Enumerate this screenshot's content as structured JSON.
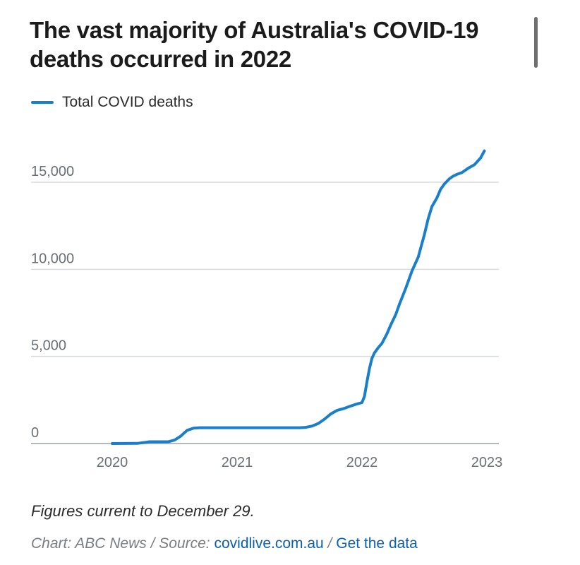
{
  "title": "The vast majority of Australia's COVID-19 deaths occurred in 2022",
  "legend": [
    {
      "label": "Total COVID deaths",
      "color": "#1a7fca"
    }
  ],
  "note": "Figures current to December 29.",
  "credit": {
    "prefix": "Chart: ABC News / Source: ",
    "source_link": "covidlive.com.au",
    "separator": " / ",
    "data_link": "Get the data"
  },
  "chart_data": {
    "type": "line",
    "title": "The vast majority of Australia's COVID-19 deaths occurred in 2022",
    "xlabel": "",
    "ylabel": "",
    "xlim": [
      2019.6,
      2023.1
    ],
    "ylim": [
      0,
      17500
    ],
    "x_ticks": [
      2020,
      2021,
      2022,
      2023
    ],
    "x_tick_labels": [
      "2020",
      "2021",
      "2022",
      "2023"
    ],
    "y_ticks": [
      0,
      5000,
      10000,
      15000
    ],
    "y_tick_labels": [
      "0",
      "5,000",
      "10,000",
      "15,000"
    ],
    "grid": "horizontal",
    "legend_position": "top-left",
    "series": [
      {
        "name": "Total COVID deaths",
        "color": "#1a7fca",
        "x": [
          2020.0,
          2020.2,
          2020.3,
          2020.45,
          2020.5,
          2020.55,
          2020.6,
          2020.65,
          2020.7,
          2020.75,
          2020.85,
          2021.0,
          2021.5,
          2021.55,
          2021.6,
          2021.65,
          2021.7,
          2021.75,
          2021.8,
          2021.85,
          2021.9,
          2021.95,
          2022.0,
          2022.02,
          2022.04,
          2022.06,
          2022.08,
          2022.1,
          2022.13,
          2022.16,
          2022.2,
          2022.23,
          2022.27,
          2022.3,
          2022.35,
          2022.4,
          2022.45,
          2022.5,
          2022.53,
          2022.56,
          2022.6,
          2022.63,
          2022.66,
          2022.7,
          2022.73,
          2022.76,
          2022.8,
          2022.85,
          2022.9,
          2022.95,
          2022.98
        ],
        "values": [
          0,
          10,
          100,
          104,
          200,
          430,
          760,
          880,
          909,
          910,
          910,
          910,
          910,
          930,
          1000,
          1150,
          1400,
          1700,
          1900,
          2000,
          2130,
          2250,
          2350,
          2700,
          3550,
          4300,
          4900,
          5200,
          5500,
          5750,
          6300,
          6800,
          7400,
          8000,
          8900,
          9900,
          10700,
          12000,
          12900,
          13600,
          14100,
          14600,
          14900,
          15200,
          15350,
          15450,
          15550,
          15800,
          16000,
          16400,
          16800
        ]
      }
    ]
  }
}
